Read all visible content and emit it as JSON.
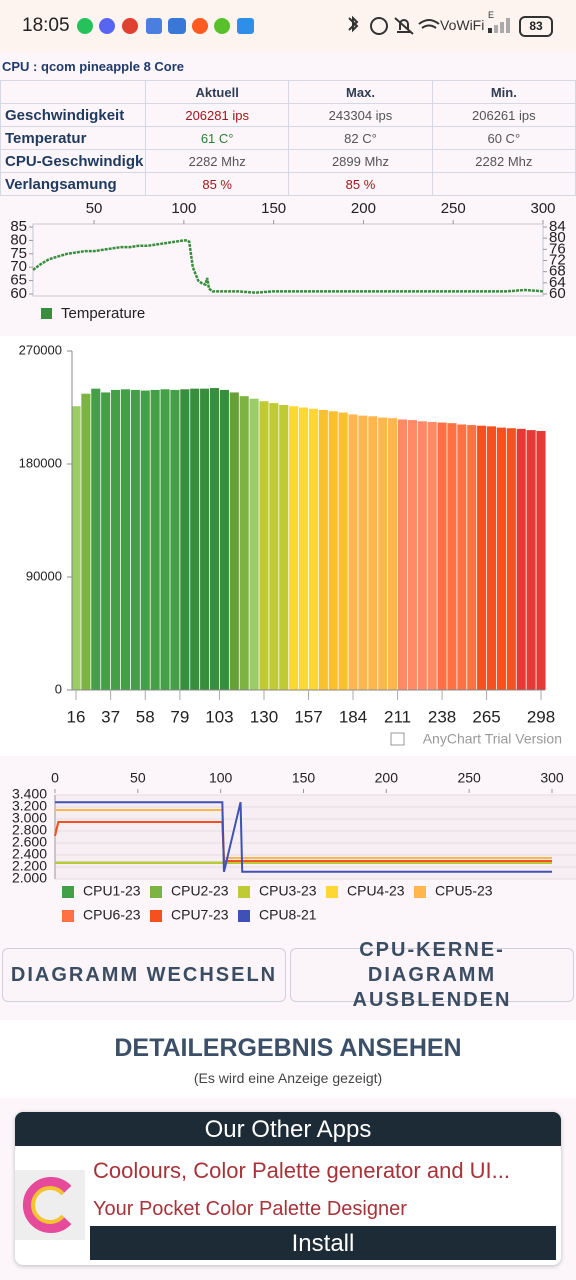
{
  "status_bar": {
    "time": "18:05",
    "network_type": "E",
    "network": "VoWiFi",
    "battery": "83"
  },
  "cpu_label": "CPU : qcom pineapple 8 Core",
  "table": {
    "headers": [
      "Aktuell",
      "Max.",
      "Min."
    ],
    "rows": [
      [
        "Geschwindigkeit",
        "206281 ips",
        "243304 ips",
        "206261 ips"
      ],
      [
        "Temperatur",
        "61 C°",
        "82 C°",
        "60 C°"
      ],
      [
        "CPU-Geschwindigk",
        "2282 Mhz",
        "2899 Mhz",
        "2282 Mhz"
      ],
      [
        "Verlangsamung",
        "85 %",
        "85 %"
      ]
    ]
  },
  "chart_data": [
    {
      "type": "line",
      "x": [
        16,
        20,
        25,
        30,
        35,
        40,
        45,
        50,
        55,
        60,
        65,
        70,
        75,
        80,
        85,
        90,
        95,
        100,
        102,
        103,
        105,
        108,
        110,
        112,
        113,
        114,
        116,
        120,
        130,
        140,
        150,
        160,
        170,
        180,
        190,
        200,
        210,
        220,
        230,
        240,
        250,
        260,
        270,
        280,
        290,
        300
      ],
      "series": [
        {
          "name": "Temperature",
          "color": "#388e3c",
          "values": [
            69,
            71,
            73,
            74,
            75,
            75.5,
            76,
            76,
            76.5,
            77,
            77.5,
            77.5,
            78,
            78,
            78.5,
            79,
            79.5,
            80,
            80,
            79.5,
            70,
            65,
            64,
            63.5,
            66,
            62,
            61,
            61,
            61,
            60.5,
            61,
            61,
            61,
            61,
            61,
            61,
            61,
            61,
            61,
            61,
            61,
            61,
            61,
            61,
            61.5,
            61
          ]
        }
      ],
      "xlim": [
        16,
        300
      ],
      "xticks": [
        50,
        100,
        150,
        200,
        250,
        300
      ],
      "ylim": [
        60,
        85
      ],
      "yticks": [
        60,
        65,
        70,
        75,
        80,
        85
      ],
      "y2lim": [
        60,
        84
      ],
      "y2ticks": [
        60,
        64,
        68,
        72,
        76,
        80,
        84
      ],
      "legend": "bottom-left"
    },
    {
      "type": "bar",
      "x": [
        16,
        22,
        28,
        34,
        40,
        46,
        52,
        58,
        64,
        70,
        76,
        82,
        88,
        94,
        100,
        106,
        112,
        118,
        124,
        130,
        136,
        142,
        148,
        154,
        160,
        166,
        172,
        178,
        184,
        190,
        196,
        202,
        208,
        214,
        220,
        226,
        232,
        238,
        244,
        250,
        256,
        262,
        268,
        274,
        280,
        286,
        292,
        298
      ],
      "values": [
        226000,
        236000,
        240000,
        237000,
        239000,
        239500,
        239000,
        238500,
        239000,
        239500,
        239000,
        239500,
        240000,
        240000,
        240500,
        239000,
        237000,
        234000,
        232000,
        230000,
        228500,
        227000,
        226000,
        225000,
        224000,
        223000,
        222000,
        221000,
        219500,
        218500,
        218000,
        217000,
        216500,
        215500,
        215000,
        214000,
        213500,
        213000,
        212500,
        211500,
        211000,
        210500,
        210000,
        209000,
        208500,
        208000,
        207000,
        206300
      ],
      "colors": [
        "#9ccc65",
        "#7cb342",
        "#43a047",
        "#43a047",
        "#43a047",
        "#43a047",
        "#43a047",
        "#43a047",
        "#43a047",
        "#43a047",
        "#43a047",
        "#388e3c",
        "#388e3c",
        "#388e3c",
        "#388e3c",
        "#388e3c",
        "#689f38",
        "#7cb342",
        "#9ccc65",
        "#c0ca33",
        "#c0ca33",
        "#c0ca33",
        "#fdd835",
        "#fdd835",
        "#fdd835",
        "#fbc02d",
        "#fbc02d",
        "#fbc02d",
        "#ffb74d",
        "#ffb74d",
        "#ffb74d",
        "#ffb74d",
        "#ffb74d",
        "#ff8a65",
        "#ff8a65",
        "#ff8a65",
        "#ff8a65",
        "#ff7043",
        "#ff7043",
        "#ff7043",
        "#ff7043",
        "#f4511e",
        "#f4511e",
        "#f4511e",
        "#f4511e",
        "#e53935",
        "#e53935",
        "#e53935"
      ],
      "xlim": [
        16,
        298
      ],
      "xticks": [
        16,
        37,
        58,
        79,
        103,
        130,
        157,
        184,
        211,
        238,
        265,
        298
      ],
      "ylim": [
        0,
        270000
      ],
      "yticks": [
        0,
        90000,
        180000,
        270000
      ],
      "annotation": "AnyChart Trial Version"
    },
    {
      "type": "line",
      "x": [
        0,
        2,
        101,
        102,
        112,
        113,
        300
      ],
      "series": [
        {
          "name": "CPU1-23",
          "color": "#43a047",
          "values": [
            2.27,
            2.27,
            2.27,
            2.27,
            2.27,
            2.27,
            2.27
          ]
        },
        {
          "name": "CPU2-23",
          "color": "#7cb342",
          "values": [
            2.27,
            2.27,
            2.27,
            2.27,
            2.27,
            2.27,
            2.27
          ]
        },
        {
          "name": "CPU3-23",
          "color": "#c0ca33",
          "values": [
            2.27,
            2.27,
            2.27,
            2.27,
            2.27,
            2.27,
            2.27
          ]
        },
        {
          "name": "CPU4-23",
          "color": "#fdd835",
          "values": [
            3.15,
            3.15,
            3.15,
            2.35,
            2.35,
            2.35,
            2.35
          ]
        },
        {
          "name": "CPU5-23",
          "color": "#ffb74d",
          "values": [
            3.15,
            3.15,
            3.15,
            2.35,
            2.35,
            2.35,
            2.35
          ]
        },
        {
          "name": "CPU6-23",
          "color": "#ff7043",
          "values": [
            2.72,
            2.95,
            2.95,
            2.3,
            2.3,
            2.3,
            2.3
          ]
        },
        {
          "name": "CPU7-23",
          "color": "#f4511e",
          "values": [
            2.72,
            2.95,
            2.95,
            2.3,
            2.3,
            2.3,
            2.3
          ]
        },
        {
          "name": "CPU8-21",
          "color": "#3f51b5",
          "values": [
            3.28,
            3.28,
            3.28,
            2.12,
            3.28,
            2.12,
            2.12
          ]
        }
      ],
      "xlim": [
        0,
        300
      ],
      "xticks": [
        0,
        50,
        100,
        150,
        200,
        250,
        300
      ],
      "ylim": [
        2,
        3.4
      ],
      "yticks": [
        {
          "value": 2,
          "label": "2.000"
        },
        {
          "value": 2.2,
          "label": "2.200"
        },
        {
          "value": 2.4,
          "label": "2.400"
        },
        {
          "value": 2.6,
          "label": "2.600"
        },
        {
          "value": 2.8,
          "label": "2.800"
        },
        {
          "value": 3,
          "label": "3.000"
        },
        {
          "value": 3.2,
          "label": "3.200"
        },
        {
          "value": 3.4,
          "label": "3.400"
        }
      ],
      "grid": true,
      "legend": "bottom"
    }
  ],
  "buttons": [
    "DIAGRAMM WECHSELN",
    "CPU-KERNE-DIAGRAMM AUSBLENDEN"
  ],
  "detail": {
    "title": "DETAILERGEBNIS ANSEHEN",
    "subtitle": "(Es wird eine Anzeige gezeigt)"
  },
  "ad": {
    "header": "Our Other Apps",
    "title": "Coolours, Color Palette generator and UI...",
    "subtitle": "Your Pocket Color Palette Designer",
    "button": "Install"
  }
}
